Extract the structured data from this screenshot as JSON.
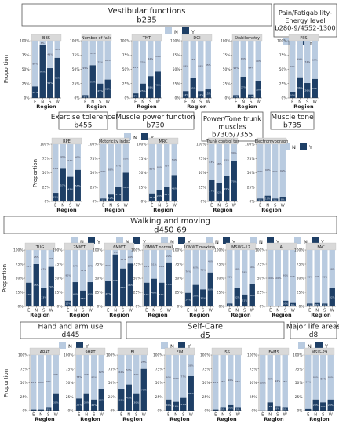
{
  "colors": {
    "N": "#b9cbe0",
    "Y": "#1e3f66",
    "strip": "#d9d9d9",
    "box_border": "#555555"
  },
  "legend": {
    "n_label": "N",
    "y_label": "Y"
  },
  "axis": {
    "ylabel": "Proportion",
    "xlabel": "Region",
    "yticks": [
      "0%",
      "25%",
      "50%",
      "75%",
      "100%"
    ]
  },
  "regions": [
    "E",
    "N",
    "S",
    "W"
  ],
  "sections": [
    {
      "lines": [
        "Vestibular functions",
        "b235"
      ]
    },
    {
      "lines": [
        "Pain/Fatigability-",
        "Energy level",
        "b280-9/4552-1300"
      ]
    },
    {
      "lines": [
        "Exercise tolerence",
        "b455"
      ]
    },
    {
      "lines": [
        "Muscle power function",
        "b730"
      ]
    },
    {
      "lines": [
        "Power/Tone trunk",
        "muscles",
        "b7305/7355"
      ]
    },
    {
      "lines": [
        "Muscle tone",
        "b735"
      ]
    },
    {
      "lines": [
        "Walking and moving",
        "d450-69"
      ]
    },
    {
      "lines": [
        "Hand and arm use",
        "d445"
      ]
    },
    {
      "lines": [
        "Self-Care",
        "d5"
      ]
    },
    {
      "lines": [
        "Major life areas",
        "d8"
      ]
    }
  ],
  "chart_data": [
    {
      "type": "bar",
      "stacked": true,
      "title": "BBS",
      "categories": [
        "E",
        "N",
        "S",
        "W"
      ],
      "series": [
        {
          "name": "Y",
          "values": [
            0.2,
            0.92,
            0.52,
            0.7
          ]
        },
        {
          "name": "N",
          "values": [
            0.8,
            0.08,
            0.48,
            0.3
          ]
        }
      ],
      "ylim": [
        0,
        1
      ]
    },
    {
      "type": "bar",
      "stacked": true,
      "title": "Number of falls",
      "categories": [
        "E",
        "N",
        "S",
        "W"
      ],
      "series": [
        {
          "name": "Y",
          "values": [
            0.05,
            0.57,
            0.25,
            0.32
          ]
        },
        {
          "name": "N",
          "values": [
            0.95,
            0.43,
            0.75,
            0.68
          ]
        }
      ],
      "ylim": [
        0,
        1
      ]
    },
    {
      "type": "bar",
      "stacked": true,
      "title": "TMT",
      "categories": [
        "E",
        "N",
        "S",
        "W"
      ],
      "series": [
        {
          "name": "Y",
          "values": [
            0.08,
            0.25,
            0.38,
            0.46
          ]
        },
        {
          "name": "N",
          "values": [
            0.92,
            0.75,
            0.62,
            0.54
          ]
        }
      ],
      "ylim": [
        0,
        1
      ]
    },
    {
      "type": "bar",
      "stacked": true,
      "title": "DGI",
      "categories": [
        "E",
        "N",
        "S",
        "W"
      ],
      "series": [
        {
          "name": "Y",
          "values": [
            0.12,
            0.35,
            0.12,
            0.15
          ]
        },
        {
          "name": "N",
          "values": [
            0.88,
            0.65,
            0.88,
            0.85
          ]
        }
      ],
      "ylim": [
        0,
        1
      ]
    },
    {
      "type": "bar",
      "stacked": true,
      "title": "Stabilometry",
      "categories": [
        "E",
        "N",
        "S",
        "W"
      ],
      "series": [
        {
          "name": "Y",
          "values": [
            0.05,
            0.37,
            0.06,
            0.3
          ]
        },
        {
          "name": "N",
          "values": [
            0.95,
            0.63,
            0.94,
            0.7
          ]
        }
      ],
      "ylim": [
        0,
        1
      ]
    },
    {
      "type": "bar",
      "stacked": true,
      "title": "FSS",
      "categories": [
        "E",
        "N",
        "S",
        "W"
      ],
      "series": [
        {
          "name": "Y",
          "values": [
            0.1,
            0.36,
            0.26,
            0.33
          ]
        },
        {
          "name": "N",
          "values": [
            0.9,
            0.64,
            0.74,
            0.67
          ]
        }
      ],
      "ylim": [
        0,
        1
      ]
    },
    {
      "type": "bar",
      "stacked": true,
      "title": "RPE",
      "categories": [
        "E",
        "N",
        "S",
        "W"
      ],
      "series": [
        {
          "name": "Y",
          "values": [
            0.15,
            0.57,
            0.43,
            0.55
          ]
        },
        {
          "name": "N",
          "values": [
            0.85,
            0.43,
            0.57,
            0.45
          ]
        }
      ],
      "ylim": [
        0,
        1
      ]
    },
    {
      "type": "bar",
      "stacked": true,
      "title": "Motoricity index",
      "categories": [
        "E",
        "N",
        "S",
        "W"
      ],
      "series": [
        {
          "name": "Y",
          "values": [
            0.05,
            0.12,
            0.25,
            0.5
          ]
        },
        {
          "name": "N",
          "values": [
            0.95,
            0.88,
            0.75,
            0.5
          ]
        }
      ],
      "ylim": [
        0,
        1
      ]
    },
    {
      "type": "bar",
      "stacked": true,
      "title": "MRC",
      "categories": [
        "E",
        "N",
        "S",
        "W"
      ],
      "series": [
        {
          "name": "Y",
          "values": [
            0.14,
            0.2,
            0.25,
            0.46
          ]
        },
        {
          "name": "N",
          "values": [
            0.86,
            0.8,
            0.75,
            0.54
          ]
        }
      ],
      "ylim": [
        0,
        1
      ]
    },
    {
      "type": "bar",
      "stacked": true,
      "title": "Trunk control tes",
      "categories": [
        "E",
        "N",
        "S",
        "W"
      ],
      "series": [
        {
          "name": "Y",
          "values": [
            0.37,
            0.32,
            0.45,
            0.7
          ]
        },
        {
          "name": "N",
          "values": [
            0.63,
            0.68,
            0.55,
            0.3
          ]
        }
      ],
      "ylim": [
        0,
        1
      ]
    },
    {
      "type": "bar",
      "stacked": true,
      "title": "Electromyograph",
      "categories": [
        "E",
        "N",
        "S",
        "W"
      ],
      "series": [
        {
          "name": "Y",
          "values": [
            0.05,
            0.1,
            0.05,
            0.08
          ]
        },
        {
          "name": "N",
          "values": [
            0.95,
            0.9,
            0.95,
            0.92
          ]
        }
      ],
      "ylim": [
        0,
        1
      ]
    },
    {
      "type": "bar",
      "stacked": true,
      "title": "TUG",
      "categories": [
        "E",
        "N",
        "S",
        "W"
      ],
      "series": [
        {
          "name": "Y",
          "values": [
            0.42,
            0.75,
            0.33,
            0.7
          ]
        },
        {
          "name": "N",
          "values": [
            0.58,
            0.25,
            0.67,
            0.3
          ]
        }
      ],
      "ylim": [
        0,
        1
      ]
    },
    {
      "type": "bar",
      "stacked": true,
      "title": "2MWT",
      "categories": [
        "E",
        "N",
        "S",
        "W"
      ],
      "series": [
        {
          "name": "Y",
          "values": [
            0.1,
            0.43,
            0.28,
            0.43
          ]
        },
        {
          "name": "N",
          "values": [
            0.9,
            0.57,
            0.72,
            0.57
          ]
        }
      ],
      "ylim": [
        0,
        1
      ]
    },
    {
      "type": "bar",
      "stacked": true,
      "title": "6MWT",
      "categories": [
        "E",
        "N",
        "S",
        "W"
      ],
      "series": [
        {
          "name": "Y",
          "values": [
            0.45,
            0.92,
            0.67,
            0.76
          ]
        },
        {
          "name": "N",
          "values": [
            0.55,
            0.08,
            0.33,
            0.24
          ]
        }
      ],
      "ylim": [
        0,
        1
      ]
    },
    {
      "type": "bar",
      "stacked": true,
      "title": "10MWT normal",
      "categories": [
        "E",
        "N",
        "S",
        "W"
      ],
      "series": [
        {
          "name": "Y",
          "values": [
            0.42,
            0.49,
            0.42,
            0.78
          ]
        },
        {
          "name": "N",
          "values": [
            0.58,
            0.51,
            0.58,
            0.22
          ]
        }
      ],
      "ylim": [
        0,
        1
      ]
    },
    {
      "type": "bar",
      "stacked": true,
      "title": "10MWT maxima",
      "categories": [
        "E",
        "N",
        "S",
        "W"
      ],
      "series": [
        {
          "name": "Y",
          "values": [
            0.24,
            0.38,
            0.3,
            0.6
          ]
        },
        {
          "name": "N",
          "values": [
            0.76,
            0.62,
            0.7,
            0.4
          ]
        }
      ],
      "ylim": [
        0,
        1
      ]
    },
    {
      "type": "bar",
      "stacked": true,
      "title": "MSWS-12",
      "categories": [
        "E",
        "N",
        "S",
        "W"
      ],
      "series": [
        {
          "name": "Y",
          "values": [
            0.05,
            0.32,
            0.21,
            0.4
          ]
        },
        {
          "name": "N",
          "values": [
            0.95,
            0.68,
            0.79,
            0.6
          ]
        }
      ],
      "ylim": [
        0,
        1
      ]
    },
    {
      "type": "bar",
      "stacked": true,
      "title": "AI",
      "categories": [
        "E",
        "N",
        "S",
        "W"
      ],
      "series": [
        {
          "name": "Y",
          "values": [
            0.0,
            0.0,
            0.1,
            0.06
          ]
        },
        {
          "name": "N",
          "values": [
            1.0,
            1.0,
            0.9,
            0.94
          ]
        }
      ],
      "ylim": [
        0,
        1
      ]
    },
    {
      "type": "bar",
      "stacked": true,
      "title": "FAC",
      "categories": [
        "E",
        "N",
        "S",
        "W"
      ],
      "series": [
        {
          "name": "Y",
          "values": [
            0.05,
            0.06,
            0.05,
            0.32
          ]
        },
        {
          "name": "N",
          "values": [
            0.95,
            0.94,
            0.95,
            0.68
          ]
        }
      ],
      "ylim": [
        0,
        1
      ]
    },
    {
      "type": "bar",
      "stacked": true,
      "title": "ARAT",
      "categories": [
        "E",
        "N",
        "S",
        "W"
      ],
      "series": [
        {
          "name": "Y",
          "values": [
            0.02,
            0.02,
            0.05,
            0.3
          ]
        },
        {
          "name": "N",
          "values": [
            0.98,
            0.98,
            0.95,
            0.7
          ]
        }
      ],
      "ylim": [
        0,
        1
      ]
    },
    {
      "type": "bar",
      "stacked": true,
      "title": "9HPT",
      "categories": [
        "E",
        "N",
        "S",
        "W"
      ],
      "series": [
        {
          "name": "Y",
          "values": [
            0.22,
            0.3,
            0.2,
            0.38
          ]
        },
        {
          "name": "N",
          "values": [
            0.78,
            0.7,
            0.8,
            0.62
          ]
        }
      ],
      "ylim": [
        0,
        1
      ]
    },
    {
      "type": "bar",
      "stacked": true,
      "title": "BI",
      "categories": [
        "E",
        "N",
        "S",
        "W"
      ],
      "series": [
        {
          "name": "Y",
          "values": [
            0.38,
            0.47,
            0.3,
            0.75
          ]
        },
        {
          "name": "N",
          "values": [
            0.62,
            0.53,
            0.7,
            0.25
          ]
        }
      ],
      "ylim": [
        0,
        1
      ]
    },
    {
      "type": "bar",
      "stacked": true,
      "title": "FIM",
      "categories": [
        "E",
        "N",
        "S",
        "W"
      ],
      "series": [
        {
          "name": "Y",
          "values": [
            0.2,
            0.16,
            0.23,
            0.62
          ]
        },
        {
          "name": "N",
          "values": [
            0.8,
            0.84,
            0.77,
            0.38
          ]
        }
      ],
      "ylim": [
        0,
        1
      ]
    },
    {
      "type": "bar",
      "stacked": true,
      "title": "ISS",
      "categories": [
        "E",
        "N",
        "S",
        "W"
      ],
      "series": [
        {
          "name": "Y",
          "values": [
            0.02,
            0.05,
            0.1,
            0.05
          ]
        },
        {
          "name": "N",
          "values": [
            0.98,
            0.95,
            0.9,
            0.95
          ]
        }
      ],
      "ylim": [
        0,
        1
      ]
    },
    {
      "type": "bar",
      "stacked": true,
      "title": "FAMS",
      "categories": [
        "E",
        "N",
        "S",
        "W"
      ],
      "series": [
        {
          "name": "Y",
          "values": [
            0.0,
            0.15,
            0.08,
            0.05
          ]
        },
        {
          "name": "N",
          "values": [
            1.0,
            0.85,
            0.92,
            0.95
          ]
        }
      ],
      "ylim": [
        0,
        1
      ]
    },
    {
      "type": "bar",
      "stacked": true,
      "title": "MSIS-29",
      "categories": [
        "E",
        "N",
        "S",
        "W"
      ],
      "series": [
        {
          "name": "Y",
          "values": [
            0.03,
            0.2,
            0.15,
            0.2
          ]
        },
        {
          "name": "N",
          "values": [
            0.97,
            0.8,
            0.85,
            0.8
          ]
        }
      ],
      "ylim": [
        0,
        1
      ]
    }
  ]
}
